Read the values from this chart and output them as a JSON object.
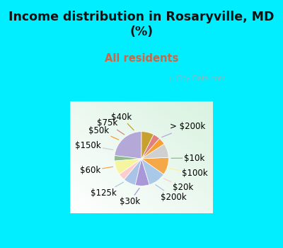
{
  "title": "Income distribution in Rosaryville, MD\n(%)",
  "subtitle": "All residents",
  "title_color": "#111111",
  "subtitle_color": "#cc6644",
  "bg_cyan": "#00eeff",
  "labels": [
    "> $200k",
    "$10k",
    "$100k",
    "$20k",
    "$200k",
    "$30k",
    "$125k",
    "$60k",
    "$150k",
    "$50k",
    "$75k",
    "$40k"
  ],
  "values": [
    22,
    3,
    8,
    4,
    7,
    8,
    10,
    10,
    8,
    4,
    4,
    7
  ],
  "colors": [
    "#b3a8d8",
    "#8fbb8f",
    "#f5f5a0",
    "#ffcccc",
    "#aac4e8",
    "#a898d8",
    "#aac8e8",
    "#f5a848",
    "#d0d0d0",
    "#f5a030",
    "#e08080",
    "#c8a030"
  ],
  "startangle": 90,
  "label_fontsize": 8.5
}
